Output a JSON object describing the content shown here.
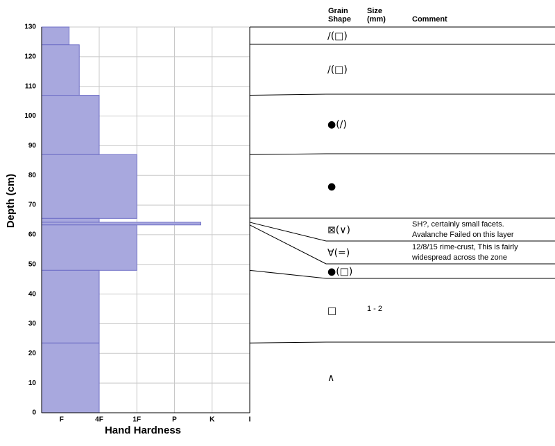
{
  "chart_data": {
    "type": "bar",
    "orientation": "horizontal",
    "ylabel": "Depth (cm)",
    "xlabel": "Hand Hardness",
    "ylim": [
      0,
      130
    ],
    "yticks": [
      0,
      10,
      20,
      30,
      40,
      50,
      60,
      70,
      80,
      90,
      100,
      110,
      120,
      130
    ],
    "xlim": [
      0.47,
      6
    ],
    "xticks": [
      {
        "value": 1,
        "label": "F"
      },
      {
        "value": 2,
        "label": "4F"
      },
      {
        "value": 3,
        "label": "1F"
      },
      {
        "value": 4,
        "label": "P"
      },
      {
        "value": 5,
        "label": "K"
      },
      {
        "value": 6,
        "label": "I"
      }
    ],
    "grid": true,
    "color": "#a8a8de",
    "edge_color": "#6e6ec6",
    "columns": {
      "grain_shape": [
        "Grain",
        "Shape"
      ],
      "size": [
        "Size",
        "(mm)"
      ],
      "comment": [
        "Comment"
      ]
    },
    "layers": [
      {
        "top": 130,
        "bottom": 124,
        "hardness": 1.2,
        "grain_shape": "∕(□)"
      },
      {
        "top": 124,
        "bottom": 107,
        "hardness": 1.47,
        "grain_shape": "∕(□)"
      },
      {
        "top": 107,
        "bottom": 87,
        "hardness": 2,
        "grain_shape": "●(∕)"
      },
      {
        "top": 87,
        "bottom": 65.5,
        "hardness": 3,
        "grain_shape": "●"
      },
      {
        "top": 65.5,
        "bottom": 64.2,
        "hardness": 2,
        "grain_shape": "⊠(∨)",
        "comment": [
          "SH?, certainly small facets.",
          "Avalanche Failed on this layer"
        ]
      },
      {
        "top": 64.2,
        "bottom": 63.3,
        "hardness": 4.7,
        "grain_shape": "∀(=)",
        "comment": [
          "12/8/15 rime-crust, This is fairly",
          "widespread across the zone"
        ]
      },
      {
        "top": 63.3,
        "bottom": 48,
        "hardness": 3,
        "grain_shape": "●(□)"
      },
      {
        "top": 48,
        "bottom": 23.5,
        "hardness": 2,
        "grain_shape": "□",
        "size": "1 - 2"
      },
      {
        "top": 23.5,
        "bottom": 0,
        "hardness": 2,
        "grain_shape": "∧"
      }
    ]
  }
}
